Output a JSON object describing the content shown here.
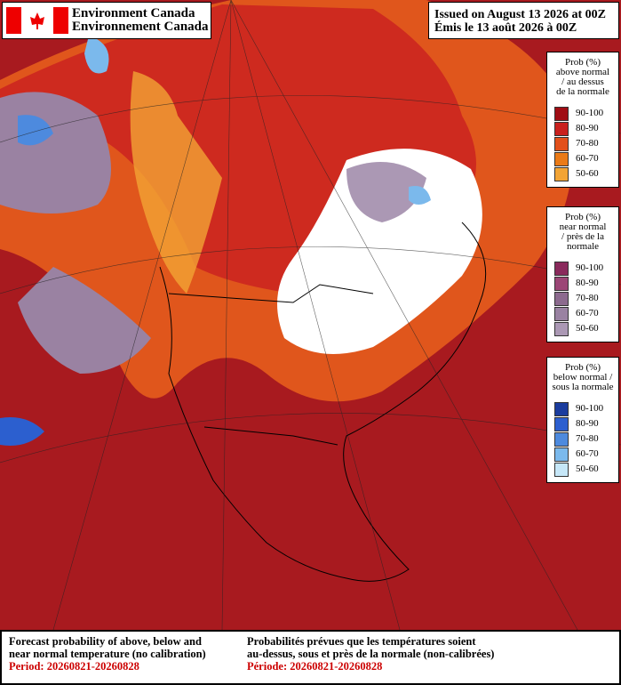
{
  "header": {
    "agency_en": "Environment Canada",
    "agency_fr": "Environnement Canada",
    "issued_en": "Issued on August 13 2026 at 00Z",
    "issued_fr": "Émis le 13 août 2026 à 00Z"
  },
  "legends": [
    {
      "title": [
        "Prob (%)",
        "above normal",
        "/ au dessus",
        "de la normale"
      ],
      "items": [
        {
          "label": "90-100",
          "color": "#a00d14"
        },
        {
          "label": "80-90",
          "color": "#c9211e"
        },
        {
          "label": "70-80",
          "color": "#e2501b"
        },
        {
          "label": "60-70",
          "color": "#ea7a17"
        },
        {
          "label": "50-60",
          "color": "#f2a435"
        }
      ]
    },
    {
      "title": [
        "Prob (%)",
        "near normal",
        "/ près de la",
        "normale"
      ],
      "items": [
        {
          "label": "90-100",
          "color": "#8a2a5c"
        },
        {
          "label": "80-90",
          "color": "#9c4676"
        },
        {
          "label": "70-80",
          "color": "#8c6a8e"
        },
        {
          "label": "60-70",
          "color": "#9a82a2"
        },
        {
          "label": "50-60",
          "color": "#ab98b4"
        }
      ]
    },
    {
      "title": [
        "Prob (%)",
        "below normal /",
        "sous la normale"
      ],
      "items": [
        {
          "label": "90-100",
          "color": "#1b3c9e"
        },
        {
          "label": "80-90",
          "color": "#2c5fcf"
        },
        {
          "label": "70-80",
          "color": "#4d8ade"
        },
        {
          "label": "60-70",
          "color": "#7bb9ec"
        },
        {
          "label": "50-60",
          "color": "#c6e7f8"
        }
      ]
    }
  ],
  "footer": {
    "en": [
      "Forecast probability of above, below and",
      "near normal temperature (no calibration)"
    ],
    "en_period": "Period: 20260821-20260828",
    "fr": [
      "Probabilités prévues que les températures soient",
      "au-dessus, sous et près de la normale (non-calibrées)"
    ],
    "fr_period": "Période: 20260821-20260828"
  }
}
